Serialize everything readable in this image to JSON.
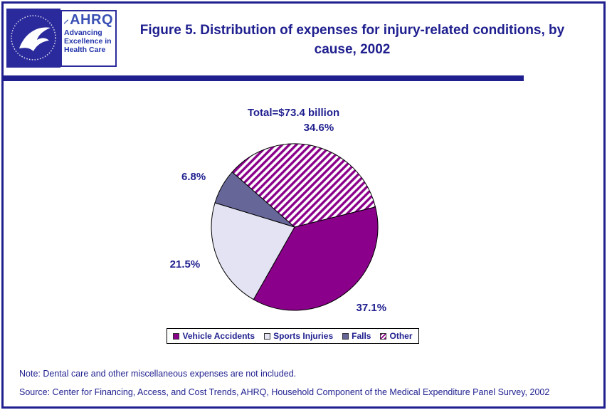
{
  "page": {
    "accent_color": "#1F1F8F",
    "background_color": "#FFFFFF"
  },
  "header": {
    "hhs_logo": "hhs-seal",
    "ahrq_logo": {
      "acronym": "AHRQ",
      "tagline_line1": "Advancing",
      "tagline_line2": "Excellence in",
      "tagline_line3": "Health Care"
    },
    "title": "Figure 5. Distribution of expenses for injury-related conditions, by cause, 2002"
  },
  "chart_data": {
    "type": "pie",
    "title": "Total=$73.4 billion",
    "categories": [
      "Vehicle Accidents",
      "Sports Injuries",
      "Falls",
      "Other"
    ],
    "values": [
      37.1,
      21.5,
      6.8,
      34.6
    ],
    "labels": [
      "37.1%",
      "21.5%",
      "6.8%",
      "34.6%"
    ],
    "colors": [
      "#8B008B",
      "#E3E3F3",
      "#666699",
      "stripes"
    ],
    "stripe_fg": "#8B008B",
    "stripe_bg": "#FFFFFF",
    "start_angle_deg": 76,
    "legend_position": "bottom",
    "label_color": "#1F1F8F"
  },
  "footer": {
    "note": "Note: Dental care and other miscellaneous expenses are not included.",
    "source": "Source: Center for Financing, Access, and Cost Trends, AHRQ, Household Component of the Medical Expenditure Panel Survey, 2002"
  }
}
